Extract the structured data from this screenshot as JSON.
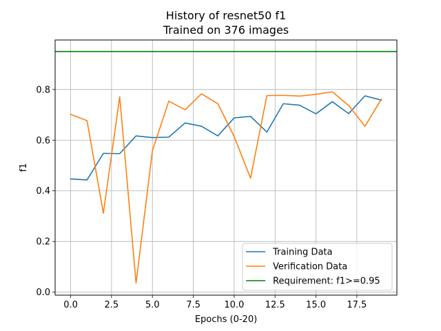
{
  "chart_data": {
    "type": "line",
    "title": "History of resnet50 f1",
    "subtitle": "Trained on 376 images",
    "xlabel": "Epochs (0-20)",
    "ylabel": "f1",
    "xlim": [
      -0.95,
      19.95
    ],
    "ylim": [
      -0.0118,
      0.9955
    ],
    "x_ticks": [
      0.0,
      2.5,
      5.0,
      7.5,
      10.0,
      12.5,
      15.0,
      17.5
    ],
    "x_tick_labels": [
      "0.0",
      "2.5",
      "5.0",
      "7.5",
      "10.0",
      "12.5",
      "15.0",
      "17.5"
    ],
    "y_ticks": [
      0.0,
      0.2,
      0.4,
      0.6,
      0.8
    ],
    "y_tick_labels": [
      "0.0",
      "0.2",
      "0.4",
      "0.6",
      "0.8"
    ],
    "grid": true,
    "legend_position": "bottom-right",
    "x": [
      0,
      1,
      2,
      3,
      4,
      5,
      6,
      7,
      8,
      9,
      10,
      11,
      12,
      13,
      14,
      15,
      16,
      17,
      18,
      19
    ],
    "series": [
      {
        "name": "Training Data",
        "color": "#1f77b4",
        "values": [
          0.447,
          0.443,
          0.548,
          0.547,
          0.617,
          0.61,
          0.612,
          0.668,
          0.655,
          0.617,
          0.688,
          0.694,
          0.632,
          0.744,
          0.738,
          0.704,
          0.752,
          0.705,
          0.775,
          0.758
        ]
      },
      {
        "name": "Verification Data",
        "color": "#ff7f0e",
        "values": [
          0.702,
          0.677,
          0.312,
          0.771,
          0.036,
          0.559,
          0.754,
          0.72,
          0.783,
          0.744,
          0.614,
          0.45,
          0.776,
          0.777,
          0.774,
          0.781,
          0.791,
          0.737,
          0.655,
          0.762
        ]
      }
    ],
    "reference_lines": [
      {
        "name": "Requirement: f1>=0.95",
        "color": "#008000",
        "y": 0.95
      }
    ]
  }
}
